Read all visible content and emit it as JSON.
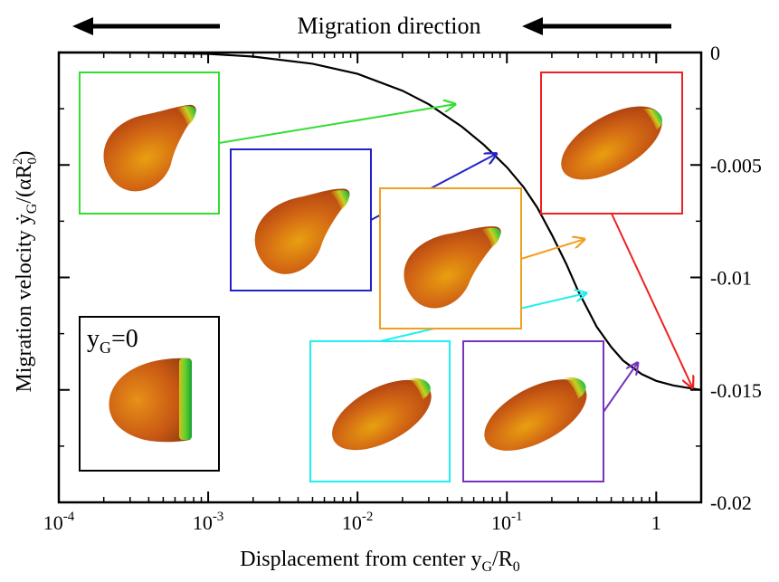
{
  "chart_data": {
    "type": "line",
    "title": "Migration direction",
    "xlabel": "Displacement from center y",
    "xlabel_sub": "G",
    "xlabel_tail": "/R",
    "xlabel_tail_sub": "0",
    "ylabel": "Migration velocity",
    "ylabel_expr": "ẏ",
    "ylabel_sub": "G",
    "ylabel_tail": "/(αR",
    "ylabel_tail_sub": "0",
    "ylabel_tail_sup": "2",
    "ylabel_close": ")",
    "x_scale": "log",
    "xlim": [
      0.0001,
      2
    ],
    "ylim": [
      -0.02,
      0
    ],
    "x_ticks": [
      {
        "value": 0.0001,
        "base": "10",
        "exp": "-4"
      },
      {
        "value": 0.001,
        "base": "10",
        "exp": "-3"
      },
      {
        "value": 0.01,
        "base": "10",
        "exp": "-2"
      },
      {
        "value": 0.1,
        "base": "10",
        "exp": "-1"
      },
      {
        "value": 1,
        "base": "1",
        "exp": ""
      }
    ],
    "y_ticks": [
      {
        "value": 0,
        "label": "0"
      },
      {
        "value": -0.005,
        "label": "-0.005"
      },
      {
        "value": -0.01,
        "label": "-0.01"
      },
      {
        "value": -0.015,
        "label": "-0.015"
      },
      {
        "value": -0.02,
        "label": "-0.02"
      }
    ],
    "y_axis_side": "right",
    "grid": false,
    "series": [
      {
        "color": "#000000",
        "x": [
          0.0001,
          0.0002,
          0.0005,
          0.001,
          0.002,
          0.005,
          0.01,
          0.02,
          0.03,
          0.05,
          0.07,
          0.1,
          0.13,
          0.16,
          0.2,
          0.25,
          0.3,
          0.4,
          0.5,
          0.6,
          0.8,
          1.0,
          1.3,
          1.6,
          2.0
        ],
        "y": [
          0,
          0,
          -2e-05,
          -6e-05,
          -0.00018,
          -0.0005,
          -0.00095,
          -0.0017,
          -0.0023,
          -0.0033,
          -0.0041,
          -0.0051,
          -0.006,
          -0.0069,
          -0.0081,
          -0.0094,
          -0.0106,
          -0.0122,
          -0.0131,
          -0.0137,
          -0.0143,
          -0.0146,
          -0.0148,
          -0.0149,
          -0.015
        ]
      }
    ],
    "annotations": {
      "direction_arrows": "two left-pointing arrows beside the title",
      "center_inset_label_main": "y",
      "center_inset_label_sub": "G",
      "center_inset_label_tail": "=0"
    },
    "insets": [
      {
        "name": "green",
        "color": "#33dd33",
        "points_to": {
          "x": 0.045,
          "y": -0.0023
        },
        "shape": "bent"
      },
      {
        "name": "blue",
        "color": "#2222cc",
        "points_to": {
          "x": 0.085,
          "y": -0.0045
        },
        "shape": "bent"
      },
      {
        "name": "orange",
        "color": "#f0a020",
        "points_to": {
          "x": 0.33,
          "y": -0.0083
        },
        "shape": "bent"
      },
      {
        "name": "red",
        "color": "#ee2222",
        "points_to": {
          "x": 1.75,
          "y": -0.0149
        },
        "shape": "straight"
      },
      {
        "name": "cyan",
        "color": "#22eeee",
        "points_to": {
          "x": 0.34,
          "y": -0.0107
        },
        "shape": "straight"
      },
      {
        "name": "purple",
        "color": "#7733bb",
        "points_to": {
          "x": 0.75,
          "y": -0.0138
        },
        "shape": "straight"
      },
      {
        "name": "center",
        "color": "#000000",
        "points_to": null,
        "shape": "front"
      }
    ],
    "legend": "none"
  }
}
